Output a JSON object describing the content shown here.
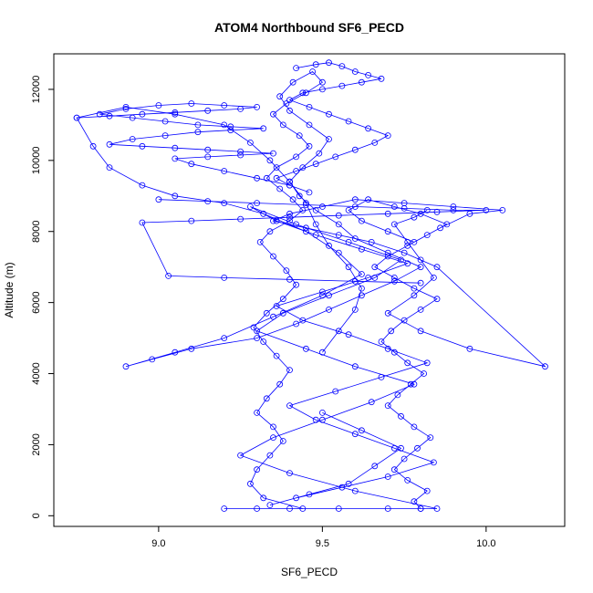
{
  "chart_data": {
    "type": "line",
    "title": "ATOM4 Northbound SF6_PECD",
    "xlabel": "SF6_PECD",
    "ylabel": "Altitude (m)",
    "xlim": [
      8.68,
      10.24
    ],
    "ylim": [
      -300,
      13000
    ],
    "xticks": [
      9.0,
      9.5,
      10.0
    ],
    "xtick_labels": [
      "9.0",
      "9.5",
      "10.0"
    ],
    "yticks": [
      0,
      2000,
      4000,
      6000,
      8000,
      10000,
      12000
    ],
    "ytick_labels": [
      "0",
      "2000",
      "4000",
      "6000",
      "8000",
      "10000",
      "12000"
    ],
    "grid": false,
    "legend": "none",
    "marker": "open-circle",
    "color": "#0000ff",
    "series": [
      {
        "x": [
          9.44,
          9.32,
          9.28,
          9.3,
          9.34,
          9.38,
          9.35,
          9.3,
          9.33,
          9.37,
          9.4,
          9.36,
          9.32,
          9.29,
          9.33,
          9.38,
          9.42,
          9.39,
          9.35,
          9.31,
          9.34,
          9.4,
          9.44,
          9.41,
          9.37,
          9.33,
          9.36,
          9.42,
          9.46,
          9.43,
          9.38,
          9.35,
          9.39,
          9.45,
          9.5,
          9.47,
          9.41,
          9.37,
          9.4,
          9.46,
          9.52,
          9.49,
          9.44,
          9.4,
          9.43,
          9.48,
          9.55,
          9.6,
          9.7,
          9.8,
          9.72,
          9.62,
          9.52,
          9.42,
          9.3,
          9.1,
          8.98,
          8.9,
          9.05,
          9.2,
          9.35,
          9.5,
          9.62,
          9.55,
          9.45,
          9.32,
          9.2,
          9.05,
          8.95,
          8.85,
          8.8,
          8.75,
          8.9,
          9.05,
          9.2,
          9.28,
          9.34,
          9.4,
          9.45,
          9.48,
          9.52,
          9.58,
          9.62,
          9.6,
          9.55,
          9.5
        ],
        "y": [
          200,
          500,
          900,
          1300,
          1700,
          2100,
          2500,
          2900,
          3300,
          3700,
          4100,
          4500,
          4900,
          5300,
          5700,
          6100,
          6500,
          6900,
          7300,
          7700,
          8000,
          8300,
          8600,
          8900,
          9200,
          9500,
          9800,
          10100,
          10400,
          10700,
          11000,
          11300,
          11600,
          11900,
          12200,
          12500,
          12200,
          11800,
          11400,
          11000,
          10600,
          10200,
          9800,
          9400,
          9000,
          8600,
          8200,
          7800,
          7400,
          7000,
          6600,
          6200,
          5800,
          5400,
          5000,
          4700,
          4400,
          4200,
          4600,
          5000,
          5600,
          6200,
          6800,
          7400,
          8000,
          8500,
          8800,
          9000,
          9300,
          9800,
          10400,
          11200,
          11500,
          11300,
          11000,
          10500,
          10000,
          9400,
          8800,
          8200,
          7600,
          7000,
          6400,
          5800,
          5200,
          4600
        ]
      },
      {
        "x": [
          9.8,
          9.78,
          9.82,
          9.76,
          9.72,
          9.75,
          9.79,
          9.83,
          9.78,
          9.74,
          9.7,
          9.73,
          9.77,
          9.81,
          9.76,
          9.72,
          9.68,
          9.71,
          9.75,
          9.8,
          9.85,
          9.78,
          9.72,
          9.66,
          9.7,
          9.76,
          9.82,
          9.88,
          9.8,
          9.72,
          9.64,
          9.58,
          9.62,
          9.7,
          9.78,
          9.86,
          9.95,
          10.05,
          9.9,
          9.75,
          9.6,
          9.5,
          9.4,
          9.35,
          9.45,
          9.55,
          9.65,
          9.75,
          9.85,
          10.18,
          9.95,
          9.8,
          9.7,
          9.78,
          9.84,
          9.8,
          9.76,
          9.72,
          9.78,
          9.82
        ],
        "y": [
          200,
          400,
          700,
          1000,
          1300,
          1600,
          1900,
          2200,
          2500,
          2800,
          3100,
          3400,
          3700,
          4000,
          4300,
          4600,
          4900,
          5200,
          5500,
          5800,
          6100,
          6400,
          6700,
          7000,
          7300,
          7600,
          7900,
          8200,
          8500,
          8700,
          8900,
          8600,
          8300,
          8000,
          7700,
          8100,
          8500,
          8600,
          8700,
          8800,
          8900,
          8700,
          8500,
          8300,
          8100,
          7900,
          7700,
          7400,
          7000,
          4200,
          4700,
          5200,
          5700,
          6200,
          6700,
          7200,
          7700,
          8200,
          8400,
          8600
        ]
      },
      {
        "x": [
          9.2,
          9.3,
          9.4,
          9.55,
          9.7,
          9.8,
          9.85,
          9.6,
          9.4,
          9.25,
          9.35,
          9.5,
          9.65,
          9.78,
          9.6,
          9.45,
          9.3,
          9.38,
          9.52,
          9.66,
          9.74,
          9.58,
          9.42,
          9.28,
          9.36,
          9.48,
          9.62,
          9.76,
          9.64,
          9.5,
          9.36,
          9.44,
          9.58,
          9.7,
          9.82,
          9.68,
          9.54,
          9.4,
          9.48,
          9.6,
          9.72,
          9.84,
          9.7,
          9.56,
          9.42,
          9.34,
          9.46,
          9.58,
          9.66,
          9.74,
          9.62,
          9.5
        ],
        "y": [
          200,
          200,
          200,
          200,
          200,
          200,
          200,
          700,
          1200,
          1700,
          2200,
          2700,
          3200,
          3700,
          4200,
          4700,
          5200,
          5700,
          6200,
          6700,
          7200,
          7700,
          8200,
          8700,
          8300,
          7900,
          7500,
          7100,
          6700,
          6300,
          5900,
          5500,
          5100,
          4700,
          4300,
          3900,
          3500,
          3100,
          2700,
          2300,
          1900,
          1500,
          1100,
          800,
          500,
          300,
          600,
          900,
          1400,
          1900,
          2400,
          2900
        ]
      },
      {
        "x": [
          8.75,
          8.85,
          8.95,
          9.05,
          9.15,
          9.25,
          9.3,
          9.2,
          9.1,
          9.0,
          8.9,
          8.82,
          8.92,
          9.02,
          9.12,
          9.22,
          9.32,
          9.22,
          9.12,
          9.02,
          8.92,
          8.85,
          8.95,
          9.05,
          9.15,
          9.25,
          9.35,
          9.25,
          9.15,
          9.05,
          9.1,
          9.2,
          9.3,
          9.4
        ],
        "y": [
          11200,
          11250,
          11300,
          11350,
          11400,
          11450,
          11500,
          11550,
          11600,
          11550,
          11450,
          11300,
          11200,
          11100,
          11000,
          10950,
          10900,
          10850,
          10800,
          10700,
          10600,
          10450,
          10400,
          10350,
          10300,
          10250,
          10200,
          10150,
          10100,
          10050,
          9900,
          9700,
          9500,
          9300
        ]
      },
      {
        "x": [
          9.42,
          9.48,
          9.52,
          9.56,
          9.6,
          9.64,
          9.68,
          9.62,
          9.56,
          9.5,
          9.44,
          9.4,
          9.46,
          9.52,
          9.58,
          9.64,
          9.7,
          9.66,
          9.6,
          9.54,
          9.48,
          9.42,
          9.36,
          9.4,
          9.46
        ],
        "y": [
          12600,
          12700,
          12750,
          12650,
          12500,
          12400,
          12300,
          12200,
          12100,
          12000,
          11900,
          11700,
          11500,
          11300,
          11100,
          10900,
          10700,
          10500,
          10300,
          10100,
          9900,
          9700,
          9500,
          9300,
          9100
        ]
      },
      {
        "x": [
          9.0,
          9.15,
          9.3,
          9.45,
          9.6,
          9.75,
          9.9,
          10.0,
          9.85,
          9.7,
          9.55,
          9.4,
          9.25,
          9.1,
          8.95,
          9.03,
          9.2,
          9.4,
          9.6,
          9.8
        ],
        "y": [
          8900,
          8850,
          8800,
          8750,
          8700,
          8650,
          8600,
          8600,
          8550,
          8500,
          8450,
          8400,
          8350,
          8300,
          8250,
          6750,
          6700,
          6650,
          6600,
          6550
        ]
      }
    ]
  }
}
